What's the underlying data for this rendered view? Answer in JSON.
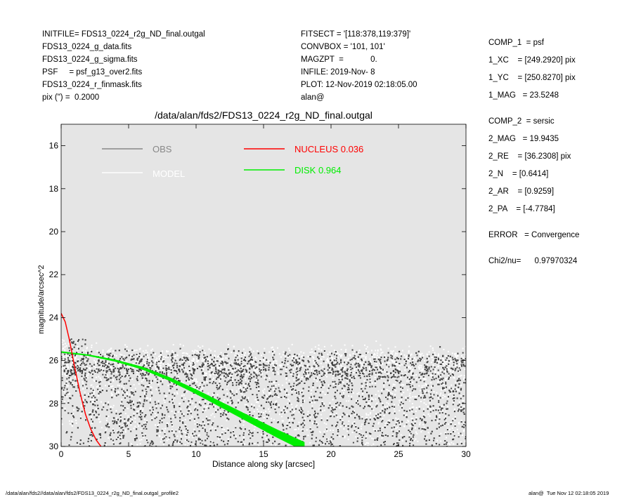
{
  "header_left": [
    "INITFILE= FDS13_0224_r2g_ND_final.outgal",
    "FDS13_0224_g_data.fits",
    "FDS13_0224_g_sigma.fits",
    "PSF     = psf_g13_over2.fits",
    "FDS13_0224_r_finmask.fits",
    "pix (\") =  0.2000"
  ],
  "header_mid": [
    "FITSECT = '[118:378,119:379]'",
    "CONVBOX = '101, 101'",
    "MAGZPT  =            0.",
    "INFILE: 2019-Nov- 8",
    "PLOT: 12-Nov-2019 02:18:05.00",
    "alan@"
  ],
  "components": {
    "comp1": [
      "COMP_1  = psf",
      "1_XC    = [249.2920] pix",
      "1_YC    = [250.8270] pix",
      "1_MAG   = 23.5248"
    ],
    "comp2": [
      "COMP_2  = sersic",
      "2_MAG   = 19.9435",
      "2_RE    = [36.2308] pix",
      "2_N    = [0.6414]",
      "2_AR    = [0.9259]",
      "2_PA    = [-4.7784]"
    ],
    "error": "ERROR   = Convergence",
    "chi2": "Chi2/nu=      0.97970324"
  },
  "footer": {
    "left": "/data/alan/fds2//data/alan/fds2/FDS13_0224_r2g_ND_final.outgal_profile2",
    "right": "alan@  Tue Nov 12 02:18:05 2019"
  },
  "chart_data": {
    "type": "scatter",
    "title": "/data/alan/fds2/FDS13_0224_r2g_ND_final.outgal",
    "xlabel": "Distance along sky [arcsec]",
    "ylabel": "magnitude/arcsec^2",
    "xlim": [
      0,
      30
    ],
    "ylim": [
      30,
      15
    ],
    "y_inverted": true,
    "xticks": [
      0,
      5,
      10,
      15,
      20,
      25,
      30
    ],
    "yticks": [
      16,
      18,
      20,
      22,
      24,
      26,
      28,
      30
    ],
    "background": "#e5e5e5",
    "legend": [
      {
        "label": "OBS",
        "color": "#888888"
      },
      {
        "label": "MODEL",
        "color": "#ffffff"
      },
      {
        "label": "NUCLEUS  0.036",
        "color": "#ff0000"
      },
      {
        "label": "DISK  0.964",
        "color": "#00ee00"
      }
    ],
    "series": [
      {
        "name": "OBS",
        "color": "#444444",
        "style": "points",
        "x_range": [
          0,
          30
        ],
        "y_upper_mean": 26.4,
        "y_lower_bound": 30,
        "points": 4500
      },
      {
        "name": "MODEL",
        "color": "#ffffff",
        "style": "points",
        "x_range": [
          0,
          30
        ],
        "y_upper_mean": 26.2,
        "y_lower_bound": 30,
        "points": 3000
      },
      {
        "name": "NUCLEUS  0.036",
        "color": "#ff0000",
        "style": "line",
        "x": [
          0.0,
          0.3,
          0.6,
          1.0,
          1.4,
          1.8,
          2.2,
          2.6,
          2.95
        ],
        "y": [
          23.8,
          24.2,
          25.0,
          26.3,
          27.5,
          28.5,
          29.2,
          29.7,
          30.0
        ]
      },
      {
        "name": "DISK  0.964",
        "color": "#00ee00",
        "style": "band",
        "x": [
          0,
          2,
          4,
          6,
          8,
          10,
          12,
          14,
          16,
          18.0
        ],
        "y": [
          25.6,
          25.75,
          26.0,
          26.35,
          26.85,
          27.45,
          28.1,
          28.75,
          29.4,
          30.0
        ],
        "width_mag": [
          0.02,
          0.02,
          0.05,
          0.08,
          0.12,
          0.17,
          0.22,
          0.27,
          0.33,
          0.38
        ]
      }
    ]
  }
}
